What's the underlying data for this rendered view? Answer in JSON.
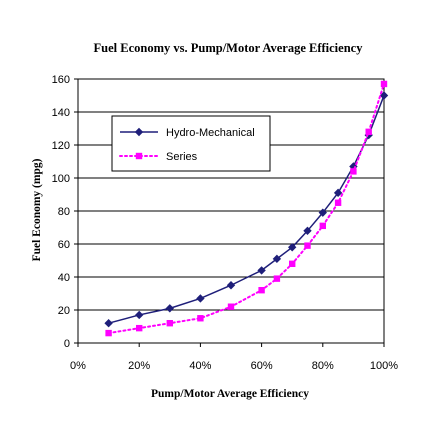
{
  "chart_data": {
    "type": "line",
    "title": "Fuel Economy vs. Pump/Motor Average Efficiency",
    "xlabel": "Pump/Motor Average Efficiency",
    "ylabel": "Fuel Economy (mpg)",
    "xlim": [
      0,
      100
    ],
    "ylim": [
      0,
      160
    ],
    "x_ticks": [
      "0%",
      "20%",
      "40%",
      "60%",
      "80%",
      "100%"
    ],
    "y_ticks": [
      "0",
      "20",
      "40",
      "60",
      "80",
      "100",
      "120",
      "140",
      "160"
    ],
    "grid": true,
    "legend_position": "upper-left",
    "series": [
      {
        "name": "Hydro-Mechanical",
        "color": "#1f1f7a",
        "marker": "diamond",
        "line": "solid",
        "x": [
          10,
          20,
          30,
          40,
          50,
          60,
          65,
          70,
          75,
          80,
          85,
          90,
          95,
          100
        ],
        "y": [
          12,
          17,
          21,
          27,
          35,
          44,
          51,
          58,
          68,
          79,
          91,
          107,
          126,
          150
        ]
      },
      {
        "name": "Series",
        "color": "#ff00ff",
        "marker": "square",
        "line": "dotted",
        "x": [
          10,
          20,
          30,
          40,
          50,
          60,
          65,
          70,
          75,
          80,
          85,
          90,
          95,
          100
        ],
        "y": [
          6,
          9,
          12,
          15,
          22,
          32,
          39,
          48,
          59,
          71,
          85,
          104,
          128,
          157
        ]
      }
    ]
  }
}
